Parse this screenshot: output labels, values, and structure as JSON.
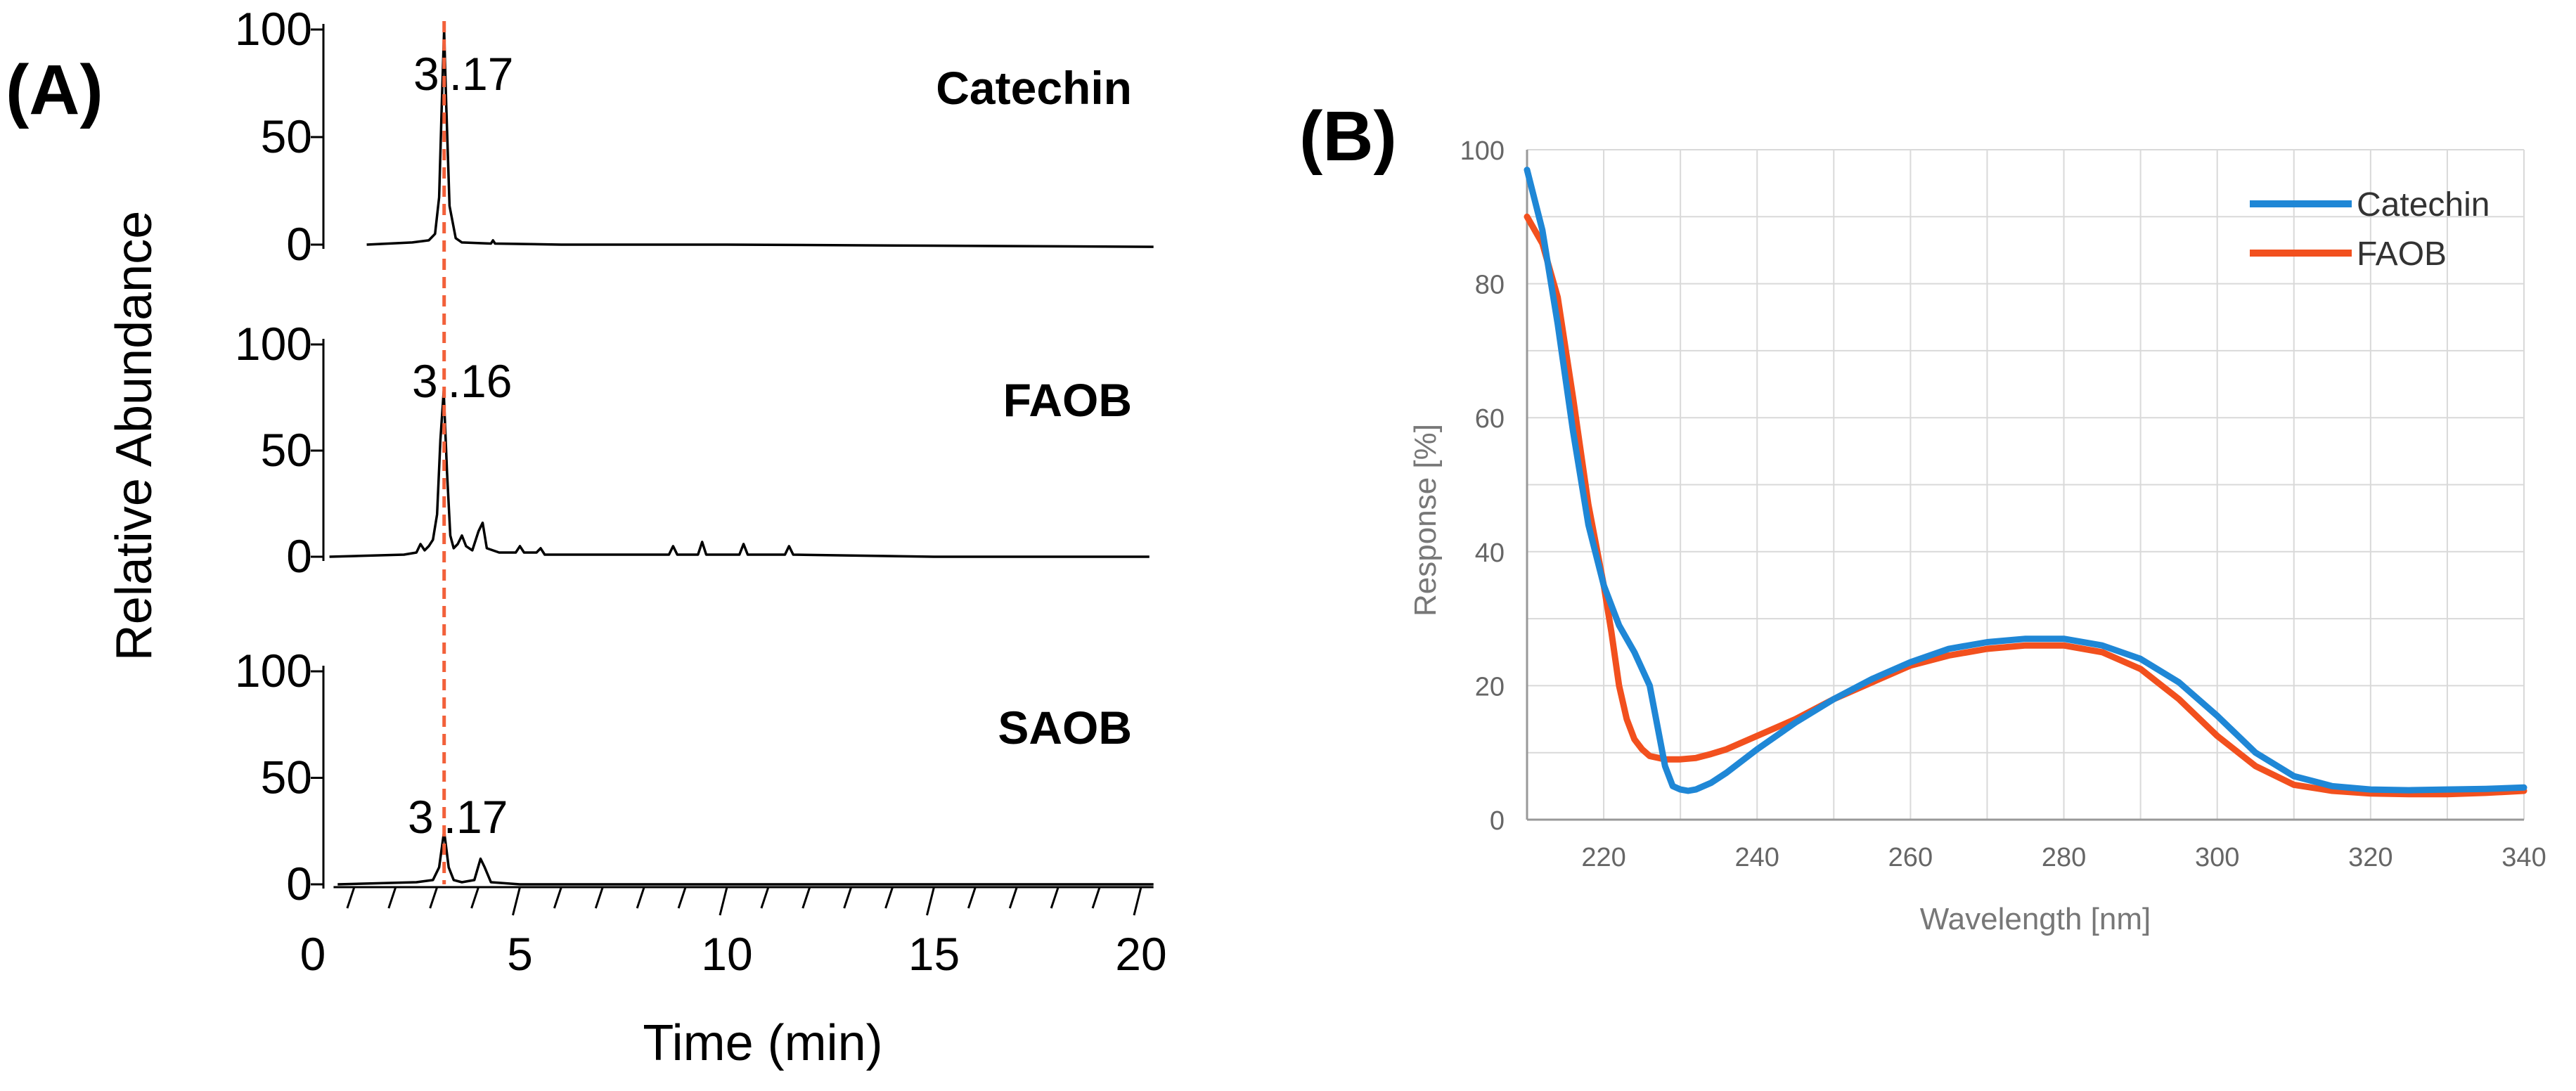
{
  "chart_data": [
    {
      "type": "line",
      "panel": "(A)",
      "ylabel": "Relative Abundance",
      "xlabel": "Time (min)",
      "xlim": [
        0,
        20
      ],
      "x_ticks": [
        "0",
        "5",
        "10",
        "15",
        "20"
      ],
      "ylim": [
        0,
        100
      ],
      "y_ticks": [
        "0",
        "50",
        "100"
      ],
      "reference_line_x": 3.17,
      "series": [
        {
          "name": "Catechin",
          "peak_label": "3.17",
          "peak_label_parts": [
            "3",
            ".17"
          ],
          "x": [
            1.3,
            2.4,
            2.8,
            2.95,
            3.05,
            3.12,
            3.17,
            3.22,
            3.3,
            3.45,
            3.6,
            4.3,
            4.35,
            4.4,
            6,
            10,
            15,
            20.3
          ],
          "y": [
            0,
            1,
            2,
            5,
            22,
            70,
            100,
            65,
            18,
            3,
            1,
            0.5,
            2,
            0.5,
            0,
            0,
            -0.5,
            -1
          ]
        },
        {
          "name": "FAOB",
          "peak_label": "3.16",
          "peak_label_parts": [
            "3",
            ".16"
          ],
          "x": [
            0.4,
            2.2,
            2.5,
            2.6,
            2.7,
            2.8,
            2.9,
            3.0,
            3.08,
            3.16,
            3.24,
            3.32,
            3.4,
            3.5,
            3.6,
            3.7,
            3.85,
            4.0,
            4.1,
            4.2,
            4.5,
            4.9,
            5.0,
            5.1,
            5.4,
            5.5,
            5.6,
            6.5,
            8.6,
            8.7,
            8.8,
            9.3,
            9.4,
            9.5,
            10.3,
            10.4,
            10.5,
            11.4,
            11.5,
            11.6,
            15,
            20.2
          ],
          "y": [
            0,
            1,
            2,
            6,
            3,
            5,
            8,
            20,
            55,
            78,
            40,
            10,
            4,
            6,
            10,
            5,
            3,
            12,
            16,
            4,
            2,
            2,
            5,
            2,
            2,
            4,
            1,
            1,
            1,
            5,
            1,
            1,
            7,
            1,
            1,
            6,
            1,
            1,
            5,
            1,
            0,
            0
          ]
        },
        {
          "name": "SAOB",
          "peak_label": "3.17",
          "peak_label_parts": [
            "3",
            ".17"
          ],
          "x": [
            0.6,
            2.5,
            2.9,
            3.05,
            3.17,
            3.28,
            3.4,
            3.6,
            3.9,
            4.05,
            4.15,
            4.3,
            5,
            10,
            20.3
          ],
          "y": [
            0,
            1,
            2,
            8,
            25,
            8,
            2,
            1,
            2,
            12,
            8,
            1,
            0,
            0,
            0
          ]
        }
      ]
    },
    {
      "type": "line",
      "panel": "(B)",
      "ylabel": "Response [%]",
      "xlabel": "Wavelength [nm]",
      "xlim": [
        210,
        340
      ],
      "x_ticks": [
        "220",
        "240",
        "260",
        "280",
        "300",
        "320",
        "340"
      ],
      "ylim": [
        0,
        100
      ],
      "y_ticks": [
        "0",
        "20",
        "40",
        "60",
        "80",
        "100"
      ],
      "grid": true,
      "legend": "top-right",
      "series": [
        {
          "name": "Catechin",
          "color": "#1f87d6",
          "x": [
            210,
            212,
            214,
            216,
            218,
            220,
            222,
            224,
            226,
            227,
            228,
            229,
            230,
            231,
            232,
            234,
            236,
            240,
            245,
            250,
            255,
            260,
            265,
            270,
            275,
            280,
            285,
            290,
            295,
            300,
            305,
            310,
            315,
            320,
            325,
            330,
            335,
            340
          ],
          "y": [
            97,
            88,
            74,
            58,
            44,
            35,
            29,
            25,
            20,
            14,
            8,
            5,
            4.5,
            4.3,
            4.5,
            5.5,
            7,
            10.5,
            14.5,
            18,
            21,
            23.5,
            25.5,
            26.5,
            27,
            27,
            26,
            24,
            20.5,
            15.5,
            10,
            6.5,
            5,
            4.5,
            4.4,
            4.5,
            4.6,
            4.8
          ]
        },
        {
          "name": "FAOB",
          "color": "#f2501e",
          "x": [
            210,
            212,
            214,
            216,
            218,
            220,
            221,
            222,
            223,
            224,
            225,
            226,
            228,
            230,
            232,
            234,
            236,
            240,
            245,
            250,
            255,
            260,
            265,
            270,
            275,
            280,
            285,
            290,
            295,
            300,
            305,
            310,
            315,
            320,
            325,
            330,
            335,
            340
          ],
          "y": [
            90,
            86,
            78,
            63,
            47,
            35,
            28,
            20,
            15,
            12,
            10.5,
            9.5,
            9,
            9,
            9.2,
            9.8,
            10.5,
            12.5,
            15,
            18,
            20.5,
            23,
            24.5,
            25.5,
            26,
            26,
            25,
            22.5,
            18,
            12.5,
            8,
            5.2,
            4.3,
            3.9,
            3.8,
            3.8,
            4,
            4.3
          ]
        }
      ]
    }
  ]
}
